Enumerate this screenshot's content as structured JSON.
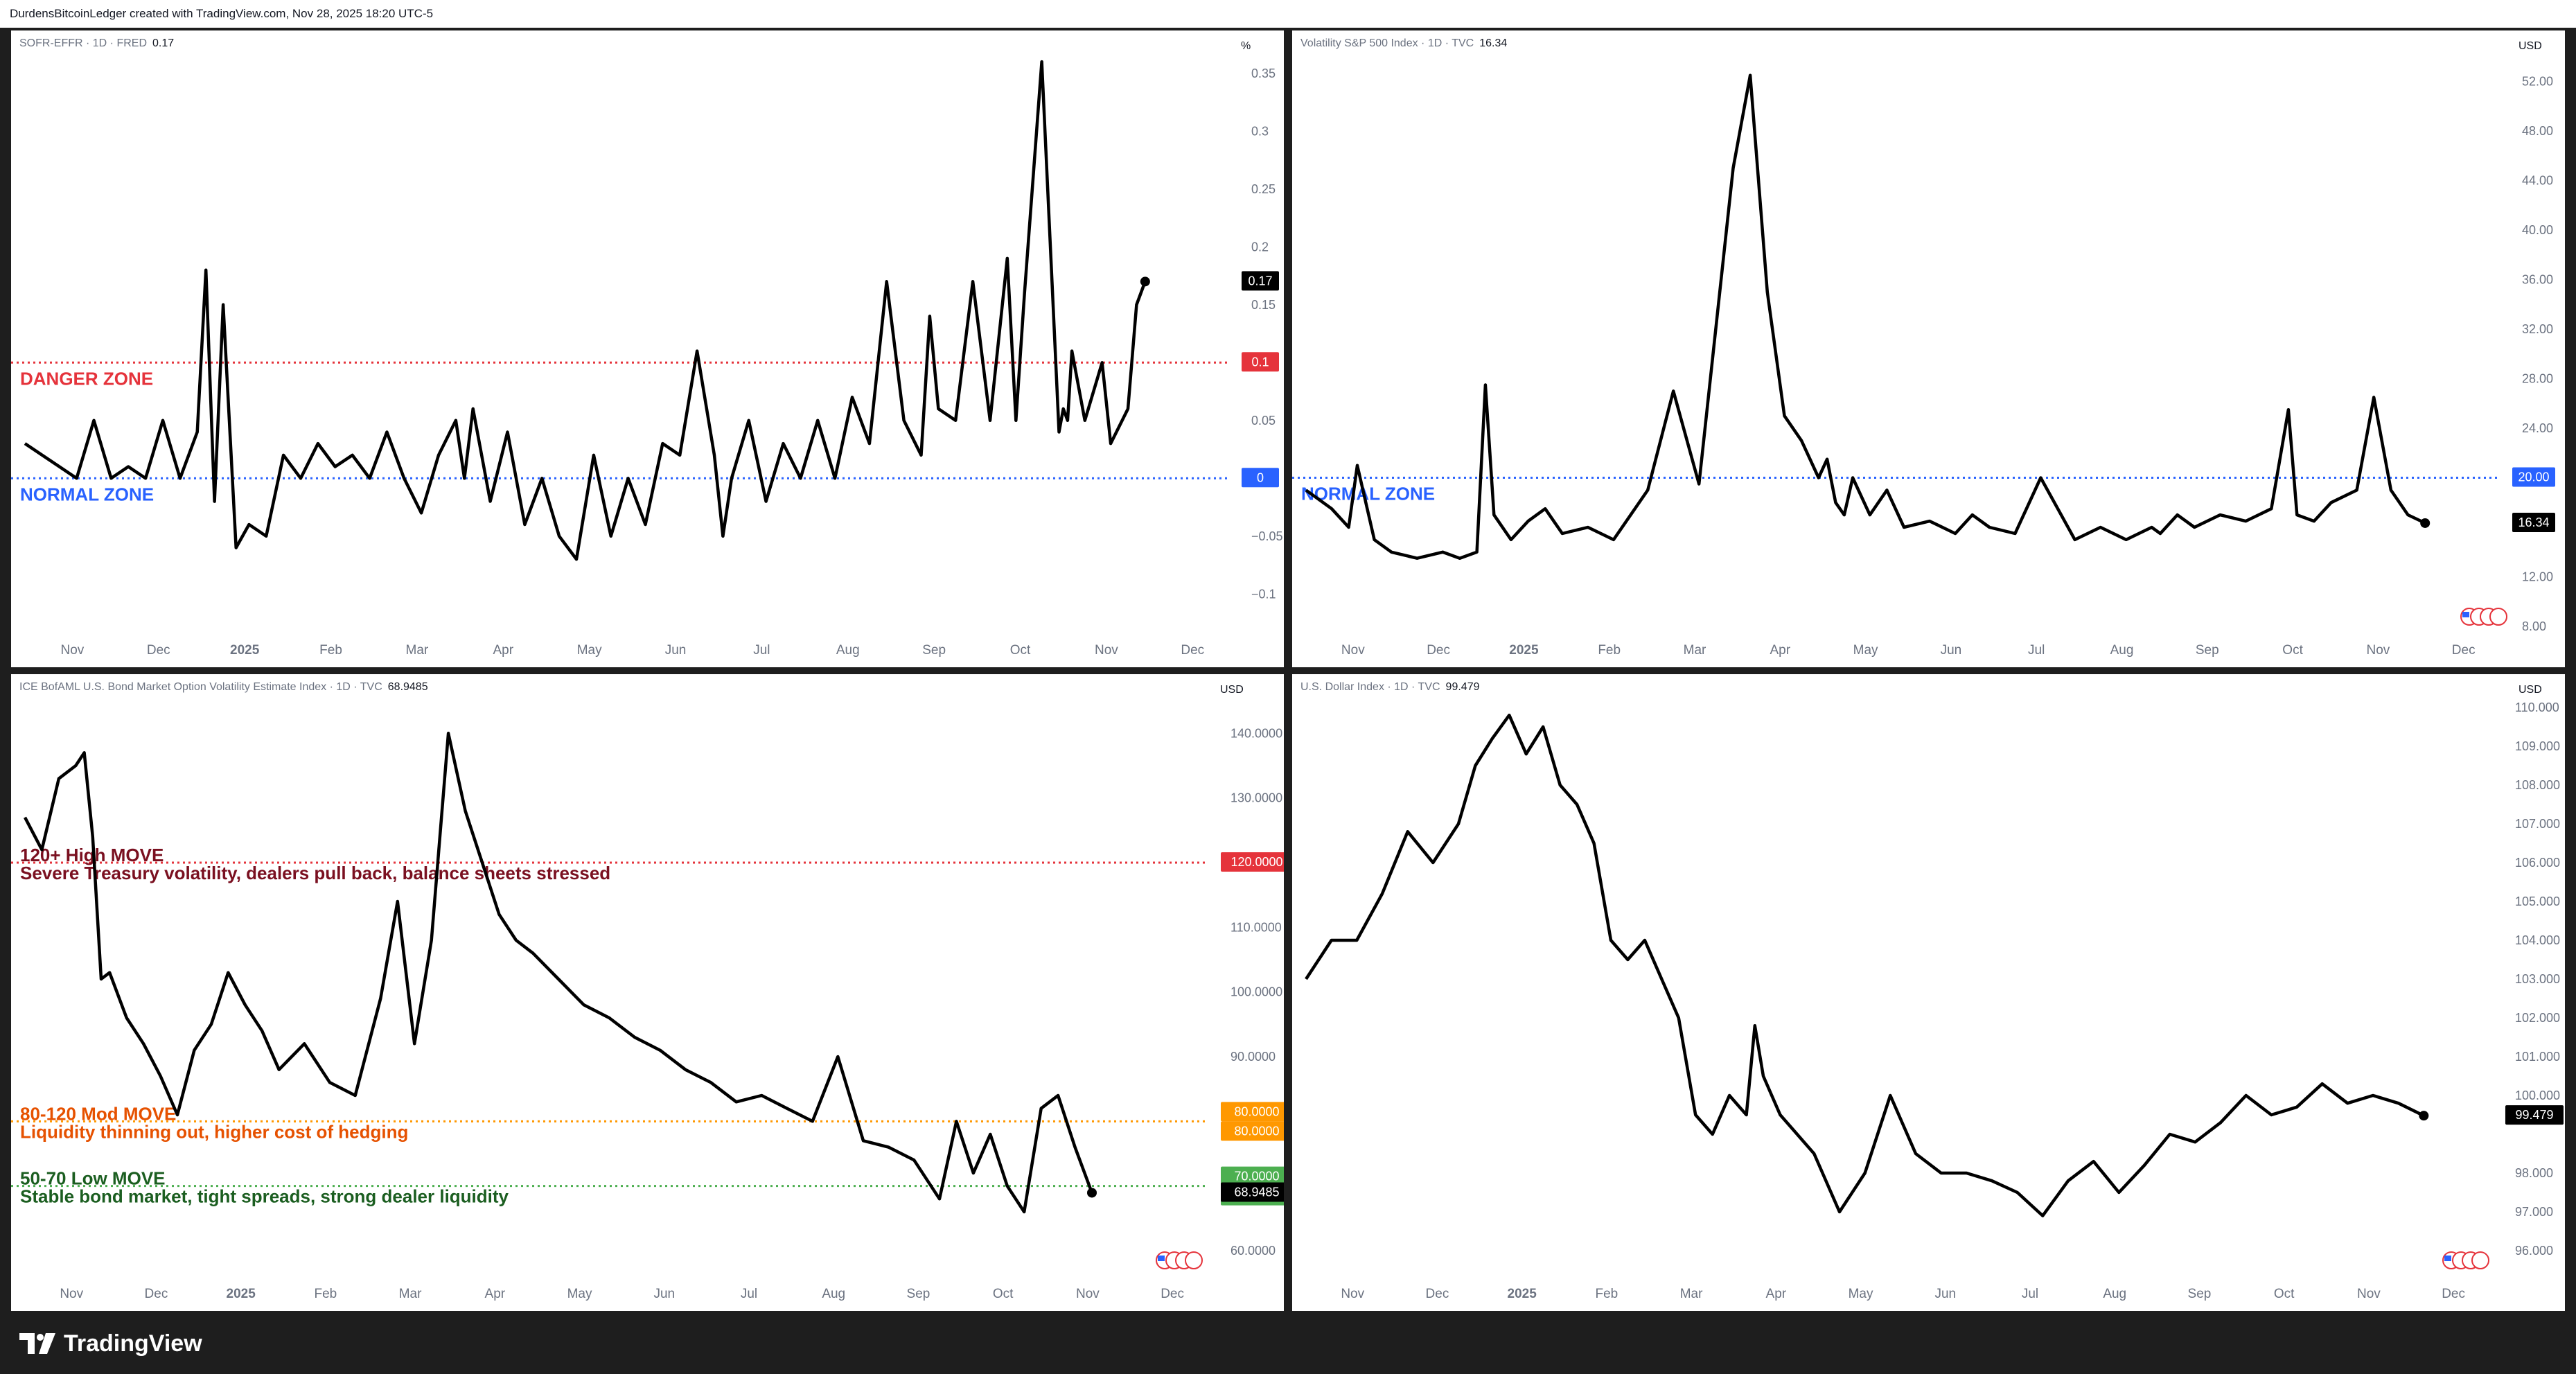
{
  "header": {
    "title": "DurdensBitcoinLedger created with TradingView.com, Nov 28, 2025 18:20 UTC-5"
  },
  "footer": {
    "brand": "TradingView"
  },
  "colors": {
    "line": "#000000",
    "red": "#e5333b",
    "blue": "#2962ff",
    "orange": "#ff9800",
    "green": "#4caf50",
    "dark_red": "#7a1020",
    "dark_orange": "#e65100",
    "dark_green": "#1b5e20"
  },
  "months": [
    "Nov",
    "Dec",
    "2025",
    "Feb",
    "Mar",
    "Apr",
    "May",
    "Jun",
    "Jul",
    "Aug",
    "Sep",
    "Oct",
    "Nov",
    "Dec"
  ],
  "chart_data": [
    {
      "id": "sofr",
      "type": "line",
      "legend": {
        "name": "SOFR-EFFR · 1D · FRED",
        "value": "0.17"
      },
      "unit": "%",
      "ylim": [
        -0.125,
        0.375
      ],
      "y_ticks": [
        {
          "v": 0.35,
          "t": "0.35"
        },
        {
          "v": 0.3,
          "t": "0.3"
        },
        {
          "v": 0.25,
          "t": "0.25"
        },
        {
          "v": 0.2,
          "t": "0.2"
        },
        {
          "v": 0.15,
          "t": "0.15"
        },
        {
          "v": 0.05,
          "t": "0.05"
        },
        {
          "v": -0.05,
          "t": "−0.05"
        },
        {
          "v": -0.1,
          "t": "−0.1"
        }
      ],
      "x_range": [
        0,
        13.95
      ],
      "series": [
        {
          "x": [
            0,
            0.2,
            0.4,
            0.6,
            0.8,
            1.0,
            1.2,
            1.4,
            1.6,
            1.8,
            2.0,
            2.1,
            2.2,
            2.3,
            2.45,
            2.6,
            2.8,
            3.0,
            3.2,
            3.4,
            3.6,
            3.8,
            4.0,
            4.2,
            4.4,
            4.6,
            4.8,
            5.0,
            5.1,
            5.2,
            5.4,
            5.6,
            5.8,
            6.0,
            6.2,
            6.4,
            6.6,
            6.8,
            7.0,
            7.2,
            7.4,
            7.6,
            7.8,
            8.0,
            8.1,
            8.2,
            8.4,
            8.6,
            8.8,
            9.0,
            9.2,
            9.4,
            9.6,
            9.8,
            10.0,
            10.2,
            10.4,
            10.5,
            10.6,
            10.8,
            11.0,
            11.2,
            11.4,
            11.5,
            11.6,
            11.8,
            12.0,
            12.05,
            12.1,
            12.15,
            12.3,
            12.5,
            12.6,
            12.8,
            12.9,
            13.0
          ],
          "values": [
            0.03,
            0.02,
            0.01,
            0.0,
            0.05,
            0.0,
            0.01,
            0.0,
            0.05,
            0.0,
            0.04,
            0.18,
            -0.02,
            0.15,
            -0.06,
            -0.04,
            -0.05,
            0.02,
            0.0,
            0.03,
            0.01,
            0.02,
            0.0,
            0.04,
            0.0,
            -0.03,
            0.02,
            0.05,
            0.0,
            0.06,
            -0.02,
            0.04,
            -0.04,
            0.0,
            -0.05,
            -0.07,
            0.02,
            -0.05,
            0.0,
            -0.04,
            0.03,
            0.02,
            0.11,
            0.02,
            -0.05,
            0.0,
            0.05,
            -0.02,
            0.03,
            0.0,
            0.05,
            0.0,
            0.07,
            0.03,
            0.17,
            0.05,
            0.02,
            0.14,
            0.06,
            0.05,
            0.17,
            0.05,
            0.19,
            0.05,
            0.16,
            0.36,
            0.04,
            0.06,
            0.05,
            0.11,
            0.05,
            0.1,
            0.03,
            0.06,
            0.15,
            0.17
          ]
        }
      ],
      "levels": [
        {
          "value": 0.1,
          "color": "#e5333b",
          "tag": "0.1",
          "labels": [
            {
              "text": "DANGER ZONE",
              "color": "#e5333b"
            }
          ]
        },
        {
          "value": 0.0,
          "color": "#2962ff",
          "tag": "0",
          "labels": [
            {
              "text": "NORMAL ZONE",
              "color": "#2962ff"
            }
          ]
        }
      ],
      "last": {
        "tag": "0.17",
        "value": 0.17
      }
    },
    {
      "id": "vix",
      "type": "line",
      "legend": {
        "name": "Volatility S&P 500 Index · 1D · TVC",
        "value": "16.34"
      },
      "unit": "USD",
      "ylim": [
        8,
        55
      ],
      "y_ticks": [
        {
          "v": 52,
          "t": "52.00"
        },
        {
          "v": 48,
          "t": "48.00"
        },
        {
          "v": 44,
          "t": "44.00"
        },
        {
          "v": 40,
          "t": "40.00"
        },
        {
          "v": 36,
          "t": "36.00"
        },
        {
          "v": 32,
          "t": "32.00"
        },
        {
          "v": 28,
          "t": "28.00"
        },
        {
          "v": 24,
          "t": "24.00"
        },
        {
          "v": 12,
          "t": "12.00"
        },
        {
          "v": 8,
          "t": "8.00"
        }
      ],
      "x_range": [
        0,
        13.95
      ],
      "series": [
        {
          "x": [
            0,
            0.3,
            0.5,
            0.6,
            0.8,
            1.0,
            1.3,
            1.6,
            1.8,
            2.0,
            2.1,
            2.2,
            2.4,
            2.6,
            2.8,
            3.0,
            3.3,
            3.6,
            4.0,
            4.3,
            4.6,
            5.0,
            5.2,
            5.4,
            5.6,
            5.8,
            6.0,
            6.1,
            6.2,
            6.3,
            6.4,
            6.6,
            6.8,
            7.0,
            7.3,
            7.6,
            7.8,
            8.0,
            8.3,
            8.6,
            9.0,
            9.3,
            9.6,
            9.9,
            10.0,
            10.2,
            10.4,
            10.7,
            11.0,
            11.3,
            11.5,
            11.6,
            11.8,
            12.0,
            12.3,
            12.5,
            12.7,
            12.9,
            13.1
          ],
          "values": [
            19.0,
            17.5,
            16.0,
            21.0,
            15.0,
            14.0,
            13.5,
            14.0,
            13.5,
            14.0,
            27.5,
            17.0,
            15.0,
            16.5,
            17.5,
            15.5,
            16.0,
            15.0,
            19.0,
            27.0,
            19.5,
            45.0,
            52.5,
            35.0,
            25.0,
            23.0,
            20.0,
            21.5,
            18.0,
            17.0,
            20.0,
            17.0,
            19.0,
            16.0,
            16.5,
            15.5,
            17.0,
            16.0,
            15.5,
            20.0,
            15.0,
            16.0,
            15.0,
            16.0,
            15.5,
            17.0,
            16.0,
            17.0,
            16.5,
            17.5,
            25.5,
            17.0,
            16.5,
            18.0,
            19.0,
            26.5,
            19.0,
            17.0,
            16.34
          ]
        }
      ],
      "levels": [
        {
          "value": 20.0,
          "color": "#2962ff",
          "tag": "20.00",
          "labels": [
            {
              "text": "NORMAL ZONE",
              "color": "#2962ff"
            }
          ]
        }
      ],
      "last": {
        "tag": "16.34",
        "value": 16.34
      }
    },
    {
      "id": "move",
      "type": "line",
      "legend": {
        "name": "ICE BofAML U.S. Bond Market Option Volatility Estimate Index · 1D · TVC",
        "value": "68.9485"
      },
      "unit": "USD",
      "ylim": [
        57,
        147
      ],
      "y_ticks": [
        {
          "v": 140,
          "t": "140.0000"
        },
        {
          "v": 130,
          "t": "130.0000"
        },
        {
          "v": 110,
          "t": "110.0000"
        },
        {
          "v": 100,
          "t": "100.0000"
        },
        {
          "v": 90,
          "t": "90.0000"
        },
        {
          "v": 60,
          "t": "60.0000"
        }
      ],
      "x_range": [
        0,
        13.95
      ],
      "series": [
        {
          "x": [
            0,
            0.2,
            0.4,
            0.6,
            0.7,
            0.8,
            0.9,
            1.0,
            1.2,
            1.4,
            1.6,
            1.8,
            2.0,
            2.2,
            2.4,
            2.6,
            2.8,
            3.0,
            3.3,
            3.6,
            3.9,
            4.2,
            4.4,
            4.6,
            4.8,
            5.0,
            5.2,
            5.4,
            5.6,
            5.8,
            6.0,
            6.3,
            6.6,
            6.9,
            7.2,
            7.5,
            7.8,
            8.1,
            8.4,
            8.7,
            9.0,
            9.3,
            9.6,
            9.9,
            10.2,
            10.5,
            10.8,
            11.0,
            11.2,
            11.4,
            11.6,
            11.8,
            12.0,
            12.2,
            12.4,
            12.6
          ],
          "values": [
            127,
            122,
            133,
            135,
            137,
            124,
            102,
            103,
            96,
            92,
            87,
            81,
            91,
            95,
            103,
            98,
            94,
            88,
            92,
            86,
            84,
            99,
            114,
            92,
            108,
            140,
            128,
            120,
            112,
            108,
            106,
            102,
            98,
            96,
            93,
            91,
            88,
            86,
            83,
            84,
            82,
            80,
            90,
            77,
            76,
            74,
            68,
            80,
            72,
            78,
            70,
            66,
            82,
            84,
            76,
            68.95
          ]
        }
      ],
      "levels": [
        {
          "value": 120.0,
          "color": "#e5333b",
          "tag": "120.0000",
          "labels": [
            {
              "text": "120+ High MOVE",
              "color": "#7a1020"
            },
            {
              "text": "Severe Treasury volatility, dealers pull back, balance sheets stressed",
              "color": "#7a1020"
            }
          ]
        },
        {
          "value": 80.0,
          "color": "#ff9800",
          "tag": "80.0000",
          "tag2": "80.0000",
          "labels": [
            {
              "text": "80-120 Mod MOVE",
              "color": "#e65100"
            },
            {
              "text": "Liquidity thinning out, higher cost of hedging",
              "color": "#e65100"
            }
          ]
        },
        {
          "value": 70.0,
          "color": "#4caf50",
          "tag": "70.0000",
          "tag2": "70.0000",
          "labels": [
            {
              "text": "50-70 Low MOVE",
              "color": "#1b5e20"
            },
            {
              "text": "Stable bond market, tight spreads, strong dealer liquidity",
              "color": "#1b5e20"
            }
          ]
        }
      ],
      "last": {
        "tag": "68.9485",
        "value": 68.9485
      }
    },
    {
      "id": "dxy",
      "type": "line",
      "legend": {
        "name": "U.S. Dollar Index · 1D · TVC",
        "value": "99.479"
      },
      "unit": "USD",
      "ylim": [
        95.5,
        110.5
      ],
      "y_ticks": [
        {
          "v": 110,
          "t": "110.000"
        },
        {
          "v": 109,
          "t": "109.000"
        },
        {
          "v": 108,
          "t": "108.000"
        },
        {
          "v": 107,
          "t": "107.000"
        },
        {
          "v": 106,
          "t": "106.000"
        },
        {
          "v": 105,
          "t": "105.000"
        },
        {
          "v": 104,
          "t": "104.000"
        },
        {
          "v": 103,
          "t": "103.000"
        },
        {
          "v": 102,
          "t": "102.000"
        },
        {
          "v": 101,
          "t": "101.000"
        },
        {
          "v": 100,
          "t": "100.000"
        },
        {
          "v": 98,
          "t": "98.000"
        },
        {
          "v": 97,
          "t": "97.000"
        },
        {
          "v": 96,
          "t": "96.000"
        }
      ],
      "x_range": [
        0,
        13.95
      ],
      "series": [
        {
          "x": [
            0,
            0.3,
            0.6,
            0.9,
            1.2,
            1.5,
            1.8,
            2.0,
            2.2,
            2.4,
            2.6,
            2.8,
            3.0,
            3.2,
            3.4,
            3.6,
            3.8,
            4.0,
            4.2,
            4.4,
            4.6,
            4.8,
            5.0,
            5.2,
            5.3,
            5.4,
            5.6,
            5.8,
            6.0,
            6.3,
            6.6,
            6.9,
            7.2,
            7.5,
            7.8,
            8.1,
            8.4,
            8.7,
            9.0,
            9.3,
            9.6,
            9.9,
            10.2,
            10.5,
            10.8,
            11.1,
            11.4,
            11.7,
            12.0,
            12.3,
            12.6,
            12.9,
            13.2
          ],
          "values": [
            103.0,
            104.0,
            104.0,
            105.2,
            106.8,
            106.0,
            107.0,
            108.5,
            109.2,
            109.8,
            108.8,
            109.5,
            108.0,
            107.5,
            106.5,
            104.0,
            103.5,
            104.0,
            103.0,
            102.0,
            99.5,
            99.0,
            100.0,
            99.5,
            101.8,
            100.5,
            99.5,
            99.0,
            98.5,
            97.0,
            98.0,
            100.0,
            98.5,
            98.0,
            98.0,
            97.8,
            97.5,
            96.9,
            97.8,
            98.3,
            97.5,
            98.2,
            99.0,
            98.8,
            99.3,
            100.0,
            99.5,
            99.7,
            100.3,
            99.8,
            100.0,
            99.8,
            99.479
          ]
        }
      ],
      "levels": [],
      "last": {
        "tag": "99.479",
        "value": 99.479
      }
    }
  ]
}
